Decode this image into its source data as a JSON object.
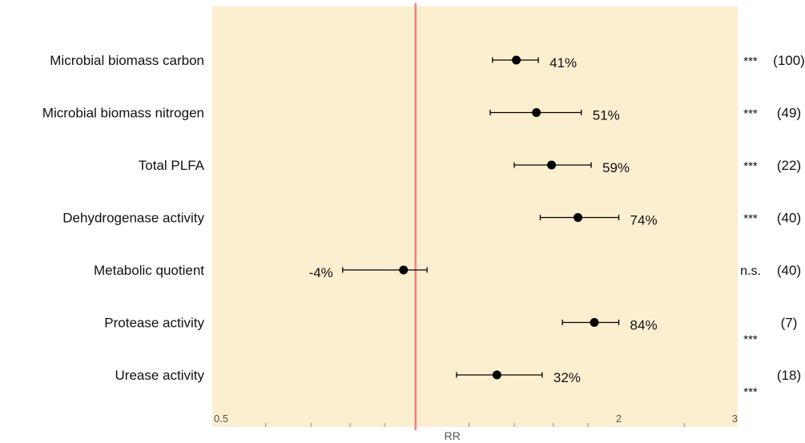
{
  "chart_data": {
    "type": "scatter",
    "title": "",
    "xlabel": "RR",
    "ylabel": "",
    "x_scale": "log",
    "xlim": [
      0.5,
      3
    ],
    "x_ticks": [
      "0.5",
      "2",
      "3"
    ],
    "reference_line": 1,
    "grid": false,
    "colors": {
      "panel": "#fcefd0",
      "reference_line": "#f08080",
      "point": "#000000"
    },
    "series": [
      {
        "values": [
          {
            "label": "Microbial biomass carbon",
            "rr": 1.41,
            "ci_low": 1.3,
            "ci_high": 1.52,
            "effect": "41%",
            "significance": "***",
            "n": "(100)"
          },
          {
            "label": "Microbial biomass nitrogen",
            "rr": 1.51,
            "ci_low": 1.29,
            "ci_high": 1.76,
            "effect": "51%",
            "significance": "***",
            "n": "(49)"
          },
          {
            "label": "Total PLFA",
            "rr": 1.59,
            "ci_low": 1.4,
            "ci_high": 1.82,
            "effect": "59%",
            "significance": "***",
            "n": "(22)"
          },
          {
            "label": "Dehydrogenase activity",
            "rr": 1.74,
            "ci_low": 1.53,
            "ci_high": 2.0,
            "effect": "74%",
            "significance": "***",
            "n": "(40)"
          },
          {
            "label": "Metabolic quotient",
            "rr": 0.96,
            "ci_low": 0.78,
            "ci_high": 1.04,
            "effect": "-4%",
            "significance": "n.s.",
            "n": "(40)"
          },
          {
            "label": "Protease activity",
            "rr": 1.84,
            "ci_low": 1.65,
            "ci_high": 2.0,
            "effect": "84%",
            "significance": "***",
            "n": "(7)"
          },
          {
            "label": "Urease activity",
            "rr": 1.32,
            "ci_low": 1.15,
            "ci_high": 1.54,
            "effect": "32%",
            "significance": "***",
            "n": "(18)"
          }
        ]
      }
    ]
  }
}
